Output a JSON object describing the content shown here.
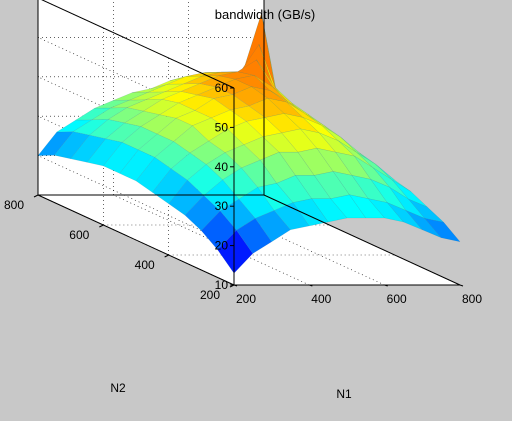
{
  "chart_data": {
    "type": "surface",
    "title": "bandwidth (GB/s)",
    "xlabel": "N1",
    "ylabel": "N2",
    "zlabel": "",
    "xlim": [
      200,
      800
    ],
    "ylim": [
      200,
      800
    ],
    "zlim": [
      10,
      60
    ],
    "x_ticks": [
      "200",
      "400",
      "600",
      "800"
    ],
    "y_ticks": [
      "200",
      "400",
      "600",
      "800"
    ],
    "z_ticks": [
      "10",
      "20",
      "30",
      "40",
      "50",
      "60"
    ],
    "grid": true,
    "colormap": "jet",
    "colors": {
      "background": "#c8c8c8",
      "axes_face": "#ffffff",
      "axes_line": "#000000"
    },
    "x_samples": [
      200,
      250,
      300,
      350,
      400,
      450,
      500,
      550,
      600,
      650,
      700,
      750,
      800
    ],
    "y_samples": [
      200,
      250,
      300,
      350,
      400,
      450,
      500,
      550,
      600,
      650,
      700,
      750,
      800
    ],
    "z_values": [
      [
        13,
        18,
        21,
        24,
        25,
        26,
        27,
        27,
        27,
        26,
        24,
        22,
        21
      ],
      [
        17,
        22,
        25,
        27,
        29,
        30,
        30,
        31,
        30,
        29,
        27,
        25,
        24
      ],
      [
        20,
        25,
        28,
        31,
        32,
        34,
        34,
        35,
        34,
        33,
        31,
        28,
        26
      ],
      [
        22,
        27,
        31,
        34,
        36,
        38,
        38,
        39,
        38,
        37,
        34,
        31,
        28
      ],
      [
        23,
        29,
        33,
        36,
        38,
        40,
        41,
        42,
        41,
        39,
        36,
        33,
        29
      ],
      [
        24,
        30,
        34,
        37,
        40,
        42,
        43,
        44,
        43,
        41,
        38,
        34,
        30
      ],
      [
        25,
        31,
        35,
        39,
        41,
        43,
        44,
        46,
        45,
        42,
        39,
        35,
        31
      ],
      [
        25,
        31,
        35,
        39,
        41,
        44,
        45,
        47,
        46,
        43,
        40,
        36,
        31
      ],
      [
        25,
        31,
        35,
        38,
        41,
        43,
        45,
        47,
        48,
        45,
        41,
        36,
        31
      ],
      [
        24,
        30,
        34,
        37,
        40,
        42,
        44,
        46,
        47,
        50,
        43,
        37,
        31
      ],
      [
        23,
        29,
        33,
        36,
        38,
        40,
        42,
        44,
        45,
        45,
        52,
        38,
        31
      ],
      [
        22,
        28,
        31,
        34,
        36,
        38,
        40,
        42,
        43,
        43,
        43,
        58,
        32
      ],
      [
        20,
        26,
        29,
        32,
        34,
        36,
        37,
        39,
        40,
        40,
        39,
        36,
        32
      ]
    ]
  }
}
